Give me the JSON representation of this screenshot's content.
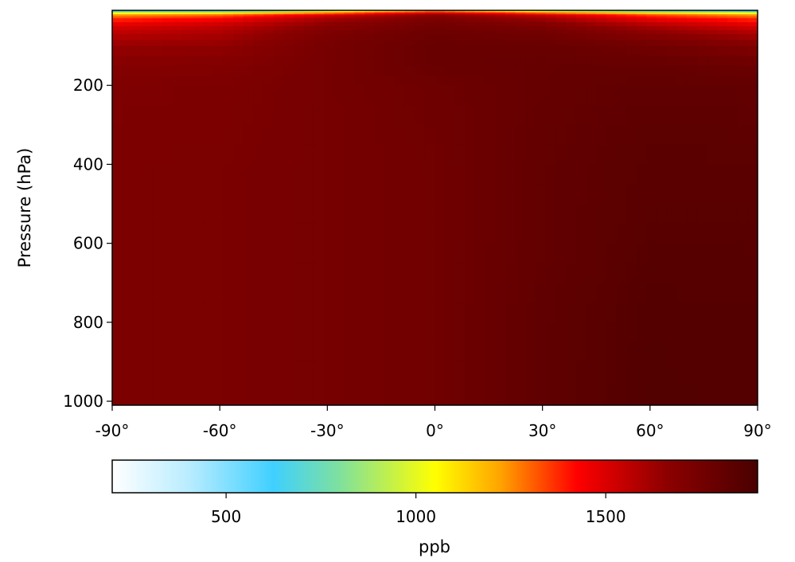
{
  "chart_data": {
    "type": "heatmap",
    "title": "",
    "xlabel": "",
    "ylabel": "Pressure (hPa)",
    "x_ticks": [
      -90,
      -60,
      -30,
      0,
      30,
      60,
      90
    ],
    "x_tick_labels": [
      "-90°",
      "-60°",
      "-30°",
      "0°",
      "30°",
      "60°",
      "90°"
    ],
    "y_ticks": [
      200,
      400,
      600,
      800,
      1000
    ],
    "y_tick_labels": [
      "200",
      "400",
      "600",
      "800",
      "1000"
    ],
    "xlim": [
      -90,
      90
    ],
    "ylim": [
      1010,
      10
    ],
    "y_inverted": true,
    "colormap": "white-blue-yellow-red-darkred",
    "colormap_stops": [
      "#ffffff",
      "#3fd0ff",
      "#ffff00",
      "#ff0000",
      "#4a0000"
    ],
    "colorbar": {
      "label": "ppb",
      "range": [
        200,
        1900
      ],
      "ticks": [
        500,
        1000,
        1500
      ],
      "tick_labels": [
        "500",
        "1000",
        "1500"
      ],
      "orientation": "horizontal",
      "placement": "below"
    },
    "latitudes": [
      -90,
      -60,
      -30,
      0,
      30,
      60,
      90
    ],
    "pressure_levels": [
      10,
      20,
      30,
      50,
      70,
      100,
      150,
      200,
      400,
      600,
      800,
      1000
    ],
    "values": [
      [
        550,
        600,
        850,
        1200,
        850,
        650,
        500
      ],
      [
        1200,
        1250,
        1450,
        1650,
        1500,
        1300,
        1200
      ],
      [
        1350,
        1420,
        1600,
        1720,
        1620,
        1450,
        1350
      ],
      [
        1500,
        1550,
        1680,
        1760,
        1720,
        1600,
        1500
      ],
      [
        1570,
        1600,
        1720,
        1780,
        1760,
        1680,
        1600
      ],
      [
        1640,
        1650,
        1740,
        1790,
        1790,
        1760,
        1700
      ],
      [
        1690,
        1700,
        1740,
        1790,
        1800,
        1800,
        1780
      ],
      [
        1710,
        1715,
        1740,
        1770,
        1800,
        1820,
        1810
      ],
      [
        1720,
        1725,
        1740,
        1760,
        1810,
        1840,
        1840
      ],
      [
        1720,
        1725,
        1740,
        1760,
        1810,
        1850,
        1850
      ],
      [
        1720,
        1725,
        1740,
        1760,
        1820,
        1865,
        1860
      ],
      [
        1720,
        1725,
        1740,
        1760,
        1820,
        1870,
        1860
      ]
    ]
  }
}
